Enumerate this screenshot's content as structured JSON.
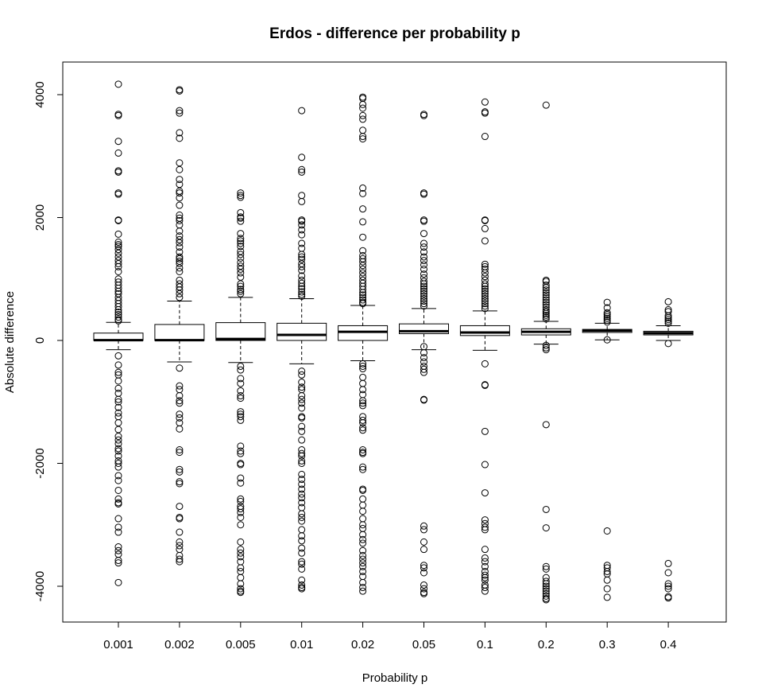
{
  "chart_data": {
    "type": "boxplot",
    "title": "Erdos - difference per probability p",
    "xlabel": "Probability p",
    "ylabel": "Absolute difference",
    "ylim": [
      -4550,
      4550
    ],
    "yticks": [
      4000,
      2000,
      0,
      -2000,
      -4000
    ],
    "ytick_labels": [
      "4000",
      "2000",
      "0",
      "-2000",
      "-4000"
    ],
    "categories": [
      "0.001",
      "0.002",
      "0.005",
      "0.01",
      "0.02",
      "0.05",
      "0.1",
      "0.2",
      "0.3",
      "0.4"
    ],
    "boxes": [
      {
        "category": "0.001",
        "whisker_low": -150,
        "q1": 0,
        "median": 5,
        "q3": 120,
        "whisker_high": 295,
        "outliers": [
          4170,
          3680,
          3660,
          3240,
          3050,
          2760,
          2740,
          2400,
          2380,
          1960,
          1950,
          1730,
          1600,
          1560,
          1530,
          1480,
          1420,
          1360,
          1300,
          1250,
          1200,
          1120,
          1000,
          950,
          900,
          850,
          800,
          760,
          700,
          650,
          600,
          550,
          500,
          460,
          420,
          380,
          340,
          320,
          -250,
          -400,
          -520,
          -560,
          -660,
          -780,
          -860,
          -960,
          -1000,
          -1090,
          -1180,
          -1240,
          -1340,
          -1450,
          -1560,
          -1620,
          -1680,
          -1760,
          -1800,
          -1880,
          -1960,
          -2000,
          -2060,
          -2200,
          -2280,
          -2440,
          -2580,
          -2640,
          -2660,
          -2900,
          -3040,
          -3120,
          -3360,
          -3420,
          -3480,
          -3580,
          -3620,
          -3940
        ]
      },
      {
        "category": "0.002",
        "whisker_low": -350,
        "q1": 0,
        "median": 5,
        "q3": 260,
        "whisker_high": 640,
        "outliers": [
          4080,
          4060,
          3740,
          3700,
          3380,
          3290,
          2890,
          2780,
          2620,
          2540,
          2430,
          2400,
          2320,
          2200,
          2040,
          1990,
          1950,
          1880,
          1780,
          1700,
          1640,
          1590,
          1520,
          1440,
          1360,
          1330,
          1290,
          1250,
          1180,
          1120,
          980,
          920,
          870,
          820,
          760,
          700,
          -450,
          -740,
          -800,
          -900,
          -980,
          -1020,
          -1200,
          -1260,
          -1340,
          -1440,
          -1780,
          -1820,
          -2100,
          -2140,
          -2300,
          -2330,
          -2700,
          -2880,
          -2900,
          -3120,
          -3280,
          -3340,
          -3400,
          -3500,
          -3560,
          -3600
        ]
      },
      {
        "category": "0.005",
        "whisker_low": -360,
        "q1": 0,
        "median": 25,
        "q3": 290,
        "whisker_high": 700,
        "outliers": [
          2400,
          2360,
          2330,
          2080,
          2010,
          1990,
          1940,
          1740,
          1660,
          1620,
          1580,
          1530,
          1450,
          1400,
          1340,
          1270,
          1210,
          1160,
          1100,
          1030,
          920,
          880,
          830,
          800,
          760,
          -420,
          -480,
          -620,
          -700,
          -820,
          -900,
          -940,
          -1160,
          -1200,
          -1240,
          -1300,
          -1720,
          -1800,
          -1840,
          -2000,
          -2020,
          -2240,
          -2320,
          -2580,
          -2620,
          -2700,
          -2740,
          -2800,
          -2880,
          -3000,
          -3280,
          -3400,
          -3460,
          -3520,
          -3600,
          -3700,
          -3760,
          -3860,
          -3960,
          -4040,
          -4080,
          -4100
        ]
      },
      {
        "category": "0.01",
        "whisker_low": -380,
        "q1": 0,
        "median": 90,
        "q3": 280,
        "whisker_high": 680,
        "outliers": [
          3740,
          2980,
          2780,
          2740,
          2360,
          2260,
          1960,
          1940,
          1880,
          1800,
          1720,
          1580,
          1500,
          1400,
          1360,
          1320,
          1250,
          1200,
          1140,
          1050,
          980,
          930,
          880,
          840,
          790,
          750,
          720,
          -500,
          -560,
          -680,
          -760,
          -800,
          -900,
          -960,
          -1020,
          -1100,
          -1240,
          -1260,
          -1400,
          -1480,
          -1620,
          -1780,
          -1840,
          -1880,
          -1960,
          -2000,
          -2180,
          -2260,
          -2340,
          -2420,
          -2500,
          -2560,
          -2640,
          -2720,
          -2820,
          -2880,
          -2940,
          -3080,
          -3180,
          -3260,
          -3380,
          -3460,
          -3600,
          -3640,
          -3720,
          -3900,
          -3980,
          -4020,
          -4040
        ]
      },
      {
        "category": "0.02",
        "whisker_low": -330,
        "q1": 0,
        "median": 140,
        "q3": 240,
        "whisker_high": 570,
        "outliers": [
          3960,
          3940,
          3840,
          3780,
          3660,
          3600,
          3420,
          3320,
          3280,
          2480,
          2390,
          2140,
          1930,
          1680,
          1460,
          1380,
          1330,
          1280,
          1220,
          1160,
          1100,
          1040,
          980,
          930,
          880,
          830,
          780,
          740,
          700,
          660,
          620,
          600,
          -380,
          -420,
          -460,
          -600,
          -700,
          -800,
          -880,
          -980,
          -1020,
          -1060,
          -1240,
          -1300,
          -1340,
          -1420,
          -1460,
          -1780,
          -1820,
          -1840,
          -2060,
          -2100,
          -2420,
          -2440,
          -2580,
          -2680,
          -2780,
          -2900,
          -3000,
          -3060,
          -3160,
          -3240,
          -3300,
          -3420,
          -3500,
          -3560,
          -3620,
          -3680,
          -3760,
          -3840,
          -3940,
          -4020,
          -4080
        ]
      },
      {
        "category": "0.05",
        "whisker_low": -150,
        "q1": 110,
        "median": 150,
        "q3": 270,
        "whisker_high": 520,
        "outliers": [
          3680,
          3660,
          2400,
          2380,
          1960,
          1940,
          1740,
          1580,
          1520,
          1440,
          1360,
          1300,
          1230,
          1160,
          1080,
          1020,
          960,
          920,
          880,
          840,
          800,
          760,
          720,
          680,
          640,
          600,
          560,
          -100,
          -200,
          -280,
          -350,
          -420,
          -470,
          -520,
          -960,
          -970,
          -3020,
          -3080,
          -3280,
          -3400,
          -3660,
          -3700,
          -3780,
          -3980,
          -4040,
          -4100,
          -4120
        ]
      },
      {
        "category": "0.1",
        "whisker_low": -160,
        "q1": 80,
        "median": 130,
        "q3": 240,
        "whisker_high": 480,
        "outliers": [
          3880,
          3720,
          3700,
          3320,
          1960,
          1950,
          1820,
          1620,
          1240,
          1200,
          1160,
          1100,
          1040,
          980,
          920,
          880,
          840,
          800,
          760,
          720,
          680,
          640,
          600,
          560,
          520,
          -380,
          -720,
          -730,
          -1480,
          -2020,
          -2480,
          -2920,
          -2980,
          -3040,
          -3080,
          -3400,
          -3540,
          -3600,
          -3680,
          -3760,
          -3820,
          -3860,
          -3900,
          -3980,
          -4020,
          -4080
        ]
      },
      {
        "category": "0.2",
        "whisker_low": -60,
        "q1": 90,
        "median": 140,
        "q3": 190,
        "whisker_high": 310,
        "outliers": [
          3830,
          980,
          960,
          900,
          860,
          820,
          780,
          740,
          700,
          660,
          620,
          580,
          540,
          500,
          470,
          440,
          410,
          380,
          350,
          -80,
          -120,
          -150,
          -1370,
          -2750,
          -3050,
          -3680,
          -3720,
          -3860,
          -3920,
          -3960,
          -4000,
          -4040,
          -4080,
          -4120,
          -4160,
          -4200,
          -4220
        ]
      },
      {
        "category": "0.3",
        "whisker_low": 10,
        "q1": 130,
        "median": 160,
        "q3": 180,
        "whisker_high": 280,
        "outliers": [
          620,
          530,
          450,
          420,
          390,
          360,
          330,
          300,
          10,
          -3100,
          -3660,
          -3700,
          -3760,
          -3800,
          -3900,
          -4040,
          -4180
        ]
      },
      {
        "category": "0.4",
        "whisker_low": 0,
        "q1": 90,
        "median": 120,
        "q3": 150,
        "whisker_high": 240,
        "outliers": [
          630,
          500,
          470,
          400,
          370,
          340,
          310,
          280,
          -50,
          -3630,
          -3780,
          -3960,
          -4000,
          -4040,
          -4170,
          -4190
        ]
      }
    ]
  }
}
